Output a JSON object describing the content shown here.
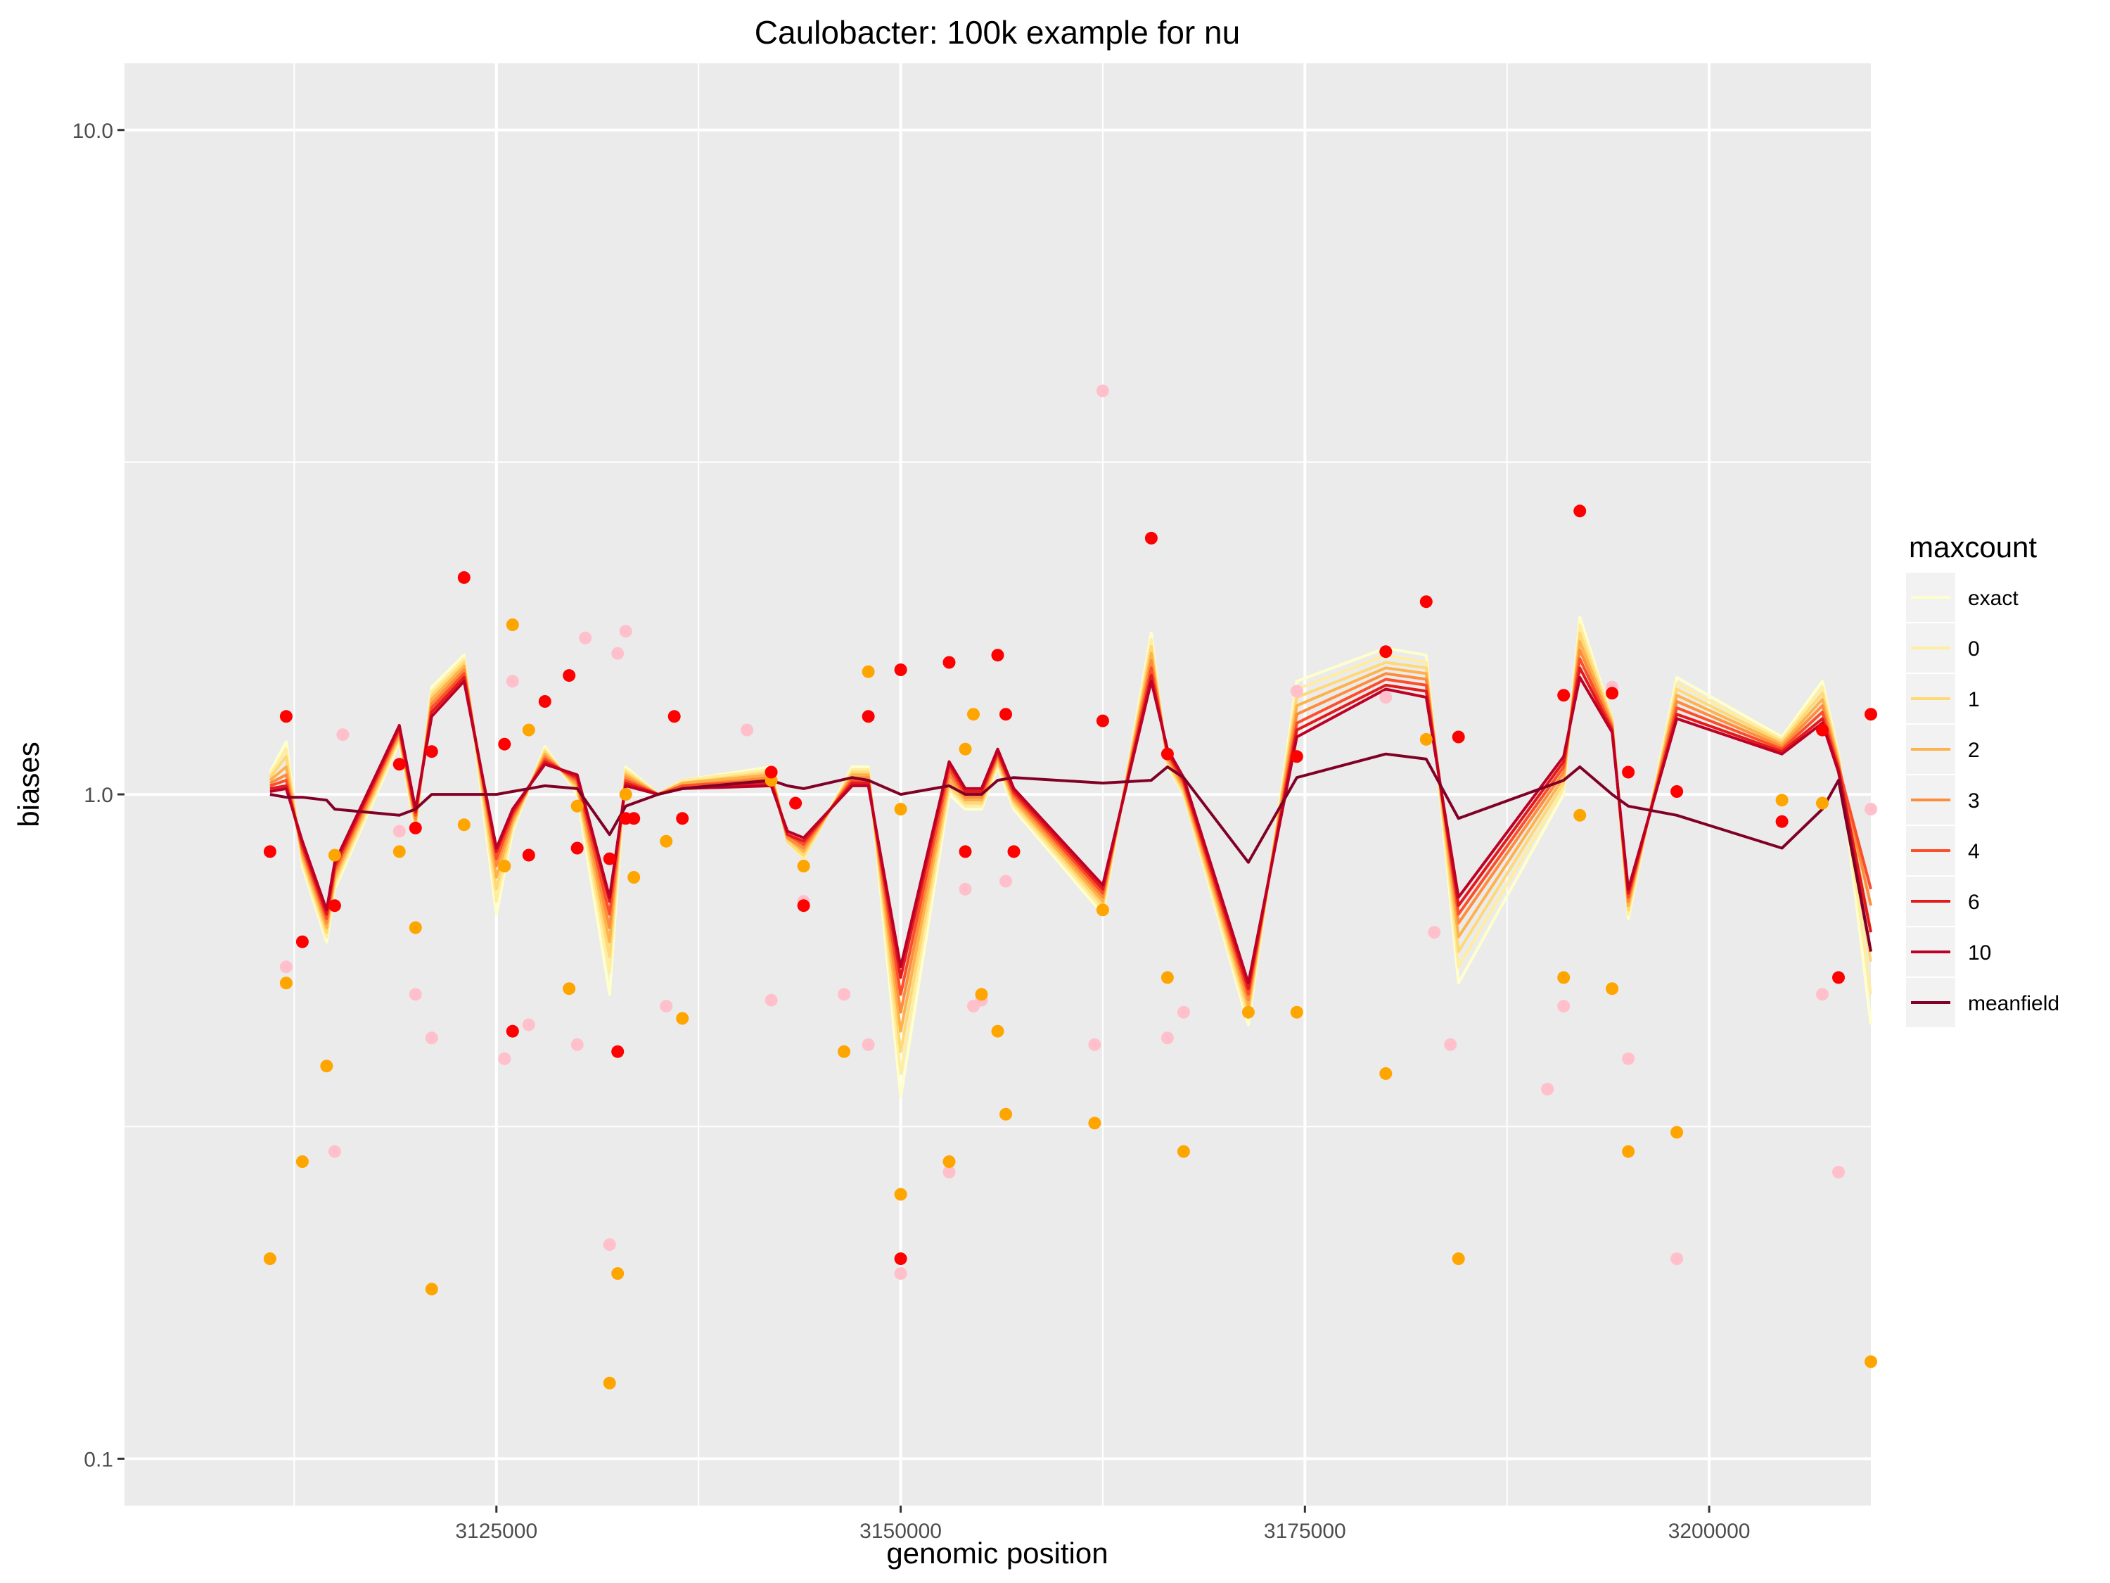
{
  "chart_data": {
    "type": "line",
    "title": "Caulobacter: 100k example for nu",
    "xlabel": "genomic position",
    "ylabel": "biases",
    "y_scale": "log10",
    "xlim": [
      3102000,
      3210000
    ],
    "ylim": [
      0.085,
      12.6
    ],
    "grid": true,
    "x_ticks": [
      {
        "value": 3125000,
        "label": "3125000"
      },
      {
        "value": 3150000,
        "label": "3150000"
      },
      {
        "value": 3175000,
        "label": "3175000"
      },
      {
        "value": 3200000,
        "label": "3200000"
      }
    ],
    "y_ticks": [
      {
        "value": 0.1,
        "label": "0.1"
      },
      {
        "value": 1.0,
        "label": "1.0"
      },
      {
        "value": 10.0,
        "label": "10.0"
      }
    ],
    "legend": {
      "title": "maxcount",
      "placement": "right",
      "entries": [
        {
          "label": "exact",
          "color": "#FFFFCC"
        },
        {
          "label": "0",
          "color": "#FFEDA0"
        },
        {
          "label": "1",
          "color": "#FED976"
        },
        {
          "label": "2",
          "color": "#FEB24C"
        },
        {
          "label": "3",
          "color": "#FD8D3C"
        },
        {
          "label": "4",
          "color": "#FC4E2A"
        },
        {
          "label": "6",
          "color": "#E31A1C"
        },
        {
          "label": "10",
          "color": "#BD0026"
        },
        {
          "label": "meanfield",
          "color": "#800026"
        }
      ]
    },
    "x": [
      3111000,
      3112000,
      3113000,
      3114500,
      3115000,
      3119000,
      3120000,
      3121000,
      3123000,
      3125000,
      3126000,
      3128000,
      3130000,
      3132000,
      3133000,
      3135000,
      3136500,
      3142000,
      3143000,
      3144000,
      3147000,
      3148000,
      3150000,
      3153000,
      3154000,
      3155000,
      3156000,
      3157000,
      3162500,
      3165500,
      3166500,
      3167500,
      3171500,
      3174500,
      3180000,
      3182500,
      3184500,
      3191000,
      3192000,
      3194000,
      3195000,
      3198000,
      3204500,
      3207000,
      3208000,
      3210000
    ],
    "series": [
      {
        "name": "exact",
        "color": "#FFFFCC",
        "values": [
          1.08,
          1.2,
          0.78,
          0.6,
          0.72,
          1.2,
          0.88,
          1.45,
          1.62,
          0.66,
          0.88,
          1.18,
          1.0,
          0.5,
          1.1,
          1.0,
          1.05,
          1.1,
          0.85,
          0.8,
          1.1,
          1.1,
          0.35,
          1.0,
          0.95,
          0.95,
          1.1,
          0.95,
          0.66,
          1.75,
          1.1,
          1.0,
          0.45,
          1.48,
          1.66,
          1.62,
          0.52,
          1.0,
          1.85,
          1.3,
          0.65,
          1.5,
          1.22,
          1.48,
          1.15,
          0.45
        ]
      },
      {
        "name": "0",
        "color": "#FFEDA0",
        "values": [
          1.07,
          1.17,
          0.79,
          0.61,
          0.73,
          1.21,
          0.89,
          1.43,
          1.6,
          0.69,
          0.89,
          1.17,
          1.01,
          0.54,
          1.09,
          1.0,
          1.05,
          1.09,
          0.85,
          0.8,
          1.09,
          1.09,
          0.38,
          1.02,
          0.96,
          0.96,
          1.11,
          0.96,
          0.67,
          1.71,
          1.11,
          1.0,
          0.46,
          1.44,
          1.62,
          1.58,
          0.55,
          1.02,
          1.8,
          1.3,
          0.66,
          1.47,
          1.21,
          1.45,
          1.14,
          0.5
        ]
      },
      {
        "name": "1",
        "color": "#FED976",
        "values": [
          1.06,
          1.14,
          0.8,
          0.62,
          0.74,
          1.22,
          0.9,
          1.41,
          1.58,
          0.72,
          0.9,
          1.16,
          1.02,
          0.57,
          1.08,
          1.0,
          1.04,
          1.08,
          0.85,
          0.81,
          1.08,
          1.08,
          0.41,
          1.03,
          0.97,
          0.97,
          1.12,
          0.97,
          0.68,
          1.67,
          1.12,
          1.01,
          0.47,
          1.4,
          1.58,
          1.55,
          0.58,
          1.04,
          1.75,
          1.29,
          0.67,
          1.44,
          1.2,
          1.42,
          1.13,
          0.56
        ]
      },
      {
        "name": "2",
        "color": "#FEB24C",
        "values": [
          1.05,
          1.1,
          0.81,
          0.63,
          0.75,
          1.23,
          0.91,
          1.39,
          1.56,
          0.75,
          0.91,
          1.15,
          1.03,
          0.6,
          1.07,
          1.0,
          1.04,
          1.07,
          0.86,
          0.82,
          1.07,
          1.07,
          0.44,
          1.05,
          0.98,
          0.98,
          1.13,
          0.98,
          0.69,
          1.63,
          1.13,
          1.02,
          0.48,
          1.36,
          1.55,
          1.52,
          0.61,
          1.06,
          1.7,
          1.28,
          0.68,
          1.41,
          1.19,
          1.39,
          1.12,
          0.62
        ]
      },
      {
        "name": "3",
        "color": "#FD8D3C",
        "values": [
          1.04,
          1.07,
          0.82,
          0.64,
          0.76,
          1.24,
          0.92,
          1.37,
          1.54,
          0.78,
          0.92,
          1.14,
          1.04,
          0.63,
          1.06,
          1.0,
          1.03,
          1.06,
          0.86,
          0.83,
          1.06,
          1.06,
          0.47,
          1.07,
          0.99,
          0.99,
          1.14,
          0.99,
          0.7,
          1.59,
          1.14,
          1.03,
          0.49,
          1.32,
          1.52,
          1.49,
          0.64,
          1.08,
          1.65,
          1.27,
          0.69,
          1.38,
          1.18,
          1.36,
          1.11,
          0.68
        ]
      },
      {
        "name": "4",
        "color": "#FC4E2A",
        "values": [
          1.03,
          1.05,
          0.83,
          0.65,
          0.77,
          1.25,
          0.93,
          1.35,
          1.52,
          0.8,
          0.93,
          1.13,
          1.05,
          0.66,
          1.05,
          1.0,
          1.03,
          1.05,
          0.87,
          0.84,
          1.05,
          1.05,
          0.5,
          1.09,
          1.0,
          1.0,
          1.15,
          1.0,
          0.71,
          1.55,
          1.15,
          1.04,
          0.5,
          1.28,
          1.49,
          1.46,
          0.66,
          1.1,
          1.6,
          1.26,
          0.7,
          1.35,
          1.17,
          1.33,
          1.1,
          0.72
        ]
      },
      {
        "name": "6",
        "color": "#E31A1C",
        "values": [
          1.02,
          1.03,
          0.84,
          0.66,
          0.78,
          1.26,
          0.94,
          1.33,
          1.5,
          0.82,
          0.94,
          1.12,
          1.06,
          0.69,
          1.04,
          1.0,
          1.02,
          1.04,
          0.87,
          0.85,
          1.04,
          1.04,
          0.53,
          1.11,
          1.01,
          1.01,
          1.16,
          1.01,
          0.72,
          1.51,
          1.16,
          1.05,
          0.51,
          1.25,
          1.46,
          1.43,
          0.68,
          1.12,
          1.55,
          1.25,
          0.71,
          1.32,
          1.16,
          1.3,
          1.09,
          0.62
        ]
      },
      {
        "name": "10",
        "color": "#BD0026",
        "values": [
          1.01,
          1.02,
          0.85,
          0.67,
          0.79,
          1.27,
          0.95,
          1.31,
          1.48,
          0.83,
          0.95,
          1.11,
          1.07,
          0.7,
          1.03,
          1.0,
          1.02,
          1.03,
          0.88,
          0.86,
          1.03,
          1.03,
          0.55,
          1.12,
          1.02,
          1.02,
          1.17,
          1.02,
          0.73,
          1.48,
          1.17,
          1.06,
          0.52,
          1.22,
          1.44,
          1.4,
          0.7,
          1.14,
          1.5,
          1.24,
          0.72,
          1.3,
          1.15,
          1.28,
          1.08,
          0.58
        ]
      },
      {
        "name": "meanfield",
        "color": "#800026",
        "values": [
          1.0,
          0.99,
          0.99,
          0.98,
          0.95,
          0.93,
          0.95,
          1.0,
          1.0,
          1.0,
          1.01,
          1.03,
          1.02,
          0.87,
          0.96,
          1.0,
          1.02,
          1.05,
          1.03,
          1.02,
          1.06,
          1.05,
          1.0,
          1.03,
          1.0,
          1.0,
          1.05,
          1.06,
          1.04,
          1.05,
          1.1,
          1.06,
          0.79,
          1.06,
          1.15,
          1.13,
          0.92,
          1.05,
          1.1,
          1.0,
          0.96,
          0.93,
          0.83,
          0.95,
          1.05,
          0.58
        ]
      }
    ],
    "points": [
      {
        "name": "pink",
        "color": "#FFC0CB",
        "x": [
          3111000,
          3112000,
          3115000,
          3115500,
          3119000,
          3120000,
          3121000,
          3125500,
          3126000,
          3127000,
          3130000,
          3130500,
          3132000,
          3132500,
          3133000,
          3135500,
          3140500,
          3142000,
          3144000,
          3146500,
          3148000,
          3150000,
          3153000,
          3154000,
          3154500,
          3155000,
          3156500,
          3162000,
          3162500,
          3166500,
          3167500,
          3174500,
          3180000,
          3183000,
          3184000,
          3190000,
          3191000,
          3194000,
          3195000,
          3198000,
          3207000,
          3208000,
          3210000
        ],
        "y": [
          0.2,
          0.55,
          0.29,
          1.23,
          0.88,
          0.5,
          0.43,
          0.4,
          1.48,
          0.45,
          0.42,
          1.72,
          0.21,
          1.63,
          1.76,
          0.48,
          1.25,
          0.49,
          0.69,
          0.5,
          0.42,
          0.19,
          0.27,
          0.72,
          0.48,
          0.49,
          0.74,
          0.42,
          4.05,
          0.43,
          0.47,
          1.43,
          1.4,
          0.62,
          0.42,
          0.36,
          0.48,
          1.45,
          0.4,
          0.2,
          0.5,
          0.27,
          0.95
        ]
      },
      {
        "name": "orange",
        "color": "#FFA500",
        "x": [
          3111000,
          3112000,
          3113000,
          3114500,
          3115000,
          3119000,
          3120000,
          3121000,
          3123000,
          3125500,
          3126000,
          3127000,
          3129500,
          3130000,
          3132000,
          3132500,
          3133000,
          3133500,
          3135500,
          3136500,
          3142000,
          3144000,
          3146500,
          3148000,
          3150000,
          3150000,
          3153000,
          3154000,
          3154500,
          3155000,
          3156000,
          3156500,
          3162000,
          3162500,
          3166500,
          3167500,
          3171500,
          3174500,
          3180000,
          3182500,
          3184500,
          3191000,
          3192000,
          3194000,
          3195000,
          3198000,
          3204500,
          3207000,
          3210000
        ],
        "y": [
          0.2,
          0.52,
          0.28,
          0.39,
          0.81,
          0.82,
          0.63,
          0.18,
          0.9,
          0.78,
          1.8,
          1.25,
          0.51,
          0.96,
          0.13,
          0.19,
          1.0,
          0.75,
          0.85,
          0.46,
          1.05,
          0.78,
          0.41,
          1.53,
          0.25,
          0.95,
          0.28,
          1.17,
          1.32,
          0.5,
          0.44,
          0.33,
          0.32,
          0.67,
          0.53,
          0.29,
          0.47,
          0.47,
          0.38,
          1.21,
          0.2,
          0.53,
          0.93,
          0.51,
          0.29,
          0.31,
          0.98,
          0.97,
          0.14
        ]
      },
      {
        "name": "red",
        "color": "#FF0000",
        "x": [
          3111000,
          3112000,
          3113000,
          3115000,
          3119000,
          3120000,
          3121000,
          3123000,
          3125500,
          3126000,
          3127000,
          3128000,
          3129500,
          3130000,
          3132000,
          3132500,
          3133000,
          3133500,
          3136000,
          3136500,
          3142000,
          3143500,
          3144000,
          3148000,
          3150000,
          3150000,
          3153000,
          3154000,
          3156000,
          3156500,
          3157000,
          3162500,
          3165500,
          3166500,
          3174500,
          3180000,
          3182500,
          3184500,
          3191000,
          3192000,
          3194000,
          3195000,
          3198000,
          3204500,
          3207000,
          3208000,
          3210000
        ],
        "y": [
          0.82,
          1.31,
          0.6,
          0.68,
          1.11,
          0.89,
          1.16,
          2.12,
          1.19,
          0.44,
          0.81,
          1.38,
          1.51,
          0.83,
          0.8,
          0.41,
          0.92,
          0.92,
          1.31,
          0.92,
          1.08,
          0.97,
          0.68,
          1.31,
          1.54,
          0.2,
          1.58,
          0.82,
          1.62,
          1.32,
          0.82,
          1.29,
          2.43,
          1.15,
          1.14,
          1.64,
          1.95,
          1.22,
          1.41,
          2.67,
          1.42,
          1.08,
          1.01,
          0.91,
          1.25,
          0.53,
          1.32
        ]
      }
    ]
  }
}
